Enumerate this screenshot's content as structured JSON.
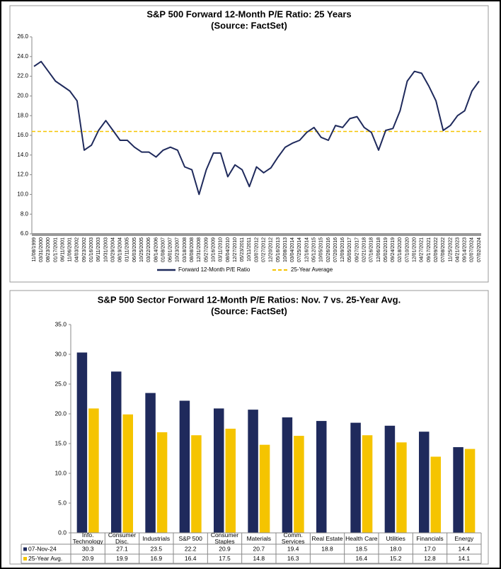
{
  "chart_data": [
    {
      "type": "line",
      "title": "S&P 500 Forward 12-Month P/E Ratio: 25 Years",
      "subtitle": "(Source: FactSet)",
      "categories": [
        "11/08/1999",
        "03/31/2000",
        "08/23/2000",
        "01/17/2001",
        "06/11/2001",
        "11/06/2001",
        "04/03/2002",
        "09/23/2002",
        "01/16/2003",
        "06/11/2003",
        "10/31/2003",
        "03/29/2004",
        "08/19/2004",
        "01/11/2005",
        "06/03/2005",
        "10/25/2005",
        "03/22/2006",
        "08/14/2006",
        "01/08/2007",
        "06/01/2007",
        "10/23/2007",
        "03/18/2008",
        "08/08/2008",
        "12/31/2008",
        "05/27/2009",
        "10/16/2009",
        "03/11/2010",
        "08/04/2010",
        "12/27/2010",
        "05/23/2011",
        "10/11/2011",
        "03/07/2012",
        "07/27/2012",
        "12/20/2012",
        "05/16/2013",
        "10/08/2013",
        "03/04/2014",
        "07/25/2014",
        "12/16/2014",
        "05/12/2015",
        "10/05/2015",
        "02/26/2016",
        "07/20/2016",
        "12/09/2016",
        "05/05/2017",
        "09/27/2017",
        "02/21/2018",
        "07/16/2018",
        "12/06/2018",
        "05/02/2019",
        "09/24/2019",
        "02/18/2020",
        "07/10/2020",
        "12/01/2020",
        "04/27/2021",
        "09/17/2021",
        "02/09/2022",
        "07/08/2022",
        "11/25/2022",
        "04/21/2023",
        "09/14/2023",
        "02/07/2024",
        "07/02/2024"
      ],
      "series": [
        {
          "name": "Forward 12-Month P/E Ratio",
          "color": "#1f2a5c",
          "values": [
            23.0,
            23.5,
            22.5,
            21.5,
            21.0,
            20.5,
            19.5,
            14.5,
            15.0,
            16.5,
            17.5,
            16.5,
            15.5,
            15.5,
            14.8,
            14.3,
            14.3,
            13.8,
            14.5,
            14.8,
            14.5,
            12.8,
            12.5,
            10.0,
            12.5,
            14.2,
            14.2,
            11.8,
            13.0,
            12.5,
            10.8,
            12.8,
            12.2,
            12.7,
            13.8,
            14.8,
            15.2,
            15.5,
            16.3,
            16.8,
            15.8,
            15.5,
            17.0,
            16.8,
            17.7,
            17.9,
            16.8,
            16.3,
            14.5,
            16.5,
            16.7,
            18.5,
            21.5,
            22.5,
            22.3,
            21.0,
            19.5,
            16.5,
            17.0,
            18.0,
            18.5,
            20.5,
            21.5
          ]
        }
      ],
      "average_line": {
        "name": "25-Year Average",
        "value": 16.4,
        "color": "#f5c400"
      },
      "ylim": [
        6,
        26
      ],
      "yticks": [
        {
          "value": 6,
          "label": "6.0"
        },
        {
          "value": 8,
          "label": "8.0"
        },
        {
          "value": 10,
          "label": "10.0"
        },
        {
          "value": 12,
          "label": "12.0"
        },
        {
          "value": 14,
          "label": "14.0"
        },
        {
          "value": 16,
          "label": "16.0"
        },
        {
          "value": 18,
          "label": "18.0"
        },
        {
          "value": 20,
          "label": "20.0"
        },
        {
          "value": 22,
          "label": "22.0"
        },
        {
          "value": 24,
          "label": "24.0"
        },
        {
          "value": 26,
          "label": "26.0"
        }
      ],
      "grid": false
    },
    {
      "type": "bar",
      "title": "S&P 500 Sector Forward 12-Month P/E Ratios: Nov. 7 vs. 25-Year Avg.",
      "subtitle": "(Source: FactSet)",
      "categories": [
        "Info. Technology",
        "Consumer Disc.",
        "Industrials",
        "S&P 500",
        "Consumer Staples",
        "Materials",
        "Comm. Services",
        "Real Estate",
        "Health Care",
        "Utilities",
        "Financials",
        "Energy"
      ],
      "series": [
        {
          "name": "07-Nov-24",
          "color": "#1f2a5c",
          "values": [
            30.3,
            27.1,
            23.5,
            22.2,
            20.9,
            20.7,
            19.4,
            18.8,
            18.5,
            18.0,
            17.0,
            14.4
          ],
          "value_labels": [
            "30.3",
            "27.1",
            "23.5",
            "22.2",
            "20.9",
            "20.7",
            "19.4",
            "18.8",
            "18.5",
            "18.0",
            "17.0",
            "14.4"
          ]
        },
        {
          "name": "25-Year Avg.",
          "color": "#f5c400",
          "values": [
            20.9,
            19.9,
            16.9,
            16.4,
            17.5,
            14.8,
            16.3,
            null,
            16.4,
            15.2,
            12.8,
            14.1
          ],
          "value_labels": [
            "20.9",
            "19.9",
            "16.9",
            "16.4",
            "17.5",
            "14.8",
            "16.3",
            null,
            "16.4",
            "15.2",
            "12.8",
            "14.1"
          ]
        }
      ],
      "ylim": [
        0,
        35
      ],
      "yticks": [
        {
          "value": 0,
          "label": "0.0"
        },
        {
          "value": 5,
          "label": "5.0"
        },
        {
          "value": 10,
          "label": "10.0"
        },
        {
          "value": 15,
          "label": "15.0"
        },
        {
          "value": 20,
          "label": "20.0"
        },
        {
          "value": 25,
          "label": "25.0"
        },
        {
          "value": 30,
          "label": "30.0"
        },
        {
          "value": 35,
          "label": "35.0"
        }
      ],
      "grid": false
    }
  ]
}
